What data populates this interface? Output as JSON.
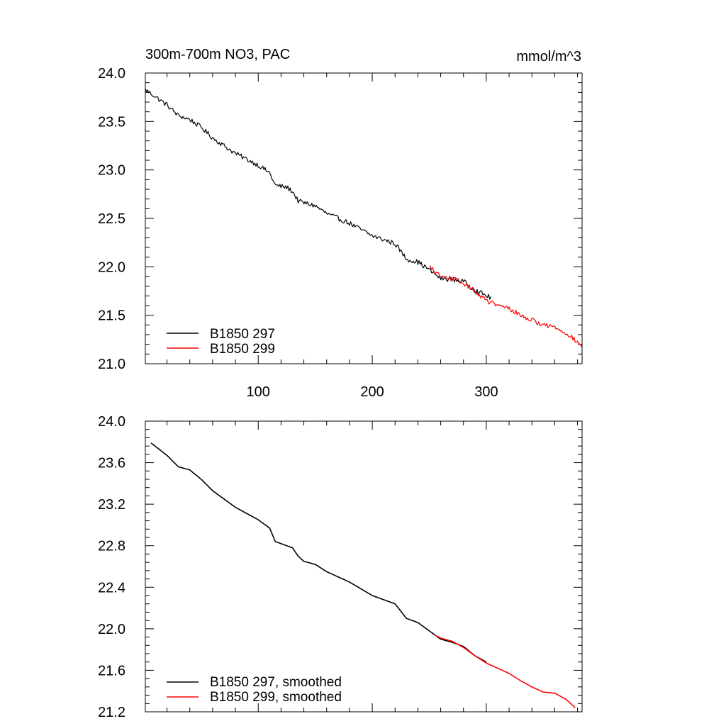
{
  "chart_data": [
    {
      "type": "line",
      "title_left": "300m-700m NO3, PAC",
      "title_right": "mmol/m^3",
      "xlim": [
        1,
        384
      ],
      "ylim": [
        21.0,
        24.0
      ],
      "x_ticks": [
        100,
        200,
        300
      ],
      "x_tick_labels": [
        "100",
        "200",
        "300"
      ],
      "y_ticks": [
        21.0,
        21.5,
        22.0,
        22.5,
        23.0,
        23.5,
        24.0
      ],
      "y_tick_labels": [
        "21.0",
        "21.5",
        "22.0",
        "22.5",
        "23.0",
        "23.5",
        "24.0"
      ],
      "noise": 0.025,
      "series": [
        {
          "name": "B1850 297",
          "color": "#000000",
          "x": [
            1,
            20,
            30,
            40,
            50,
            60,
            80,
            100,
            110,
            115,
            125,
            130,
            135,
            140,
            150,
            160,
            180,
            200,
            220,
            230,
            240,
            250,
            260,
            270,
            280,
            290,
            304
          ],
          "values": [
            23.83,
            23.67,
            23.56,
            23.52,
            23.44,
            23.33,
            23.17,
            23.05,
            22.97,
            22.84,
            22.82,
            22.78,
            22.68,
            22.66,
            22.63,
            22.55,
            22.45,
            22.32,
            22.24,
            22.08,
            22.05,
            21.97,
            21.88,
            21.87,
            21.85,
            21.76,
            21.68
          ]
        },
        {
          "name": "B1850 299",
          "color": "#ff0000",
          "x": [
            250,
            260,
            270,
            280,
            290,
            300,
            310,
            320,
            330,
            340,
            350,
            360,
            370,
            384
          ],
          "values": [
            22.0,
            21.9,
            21.88,
            21.83,
            21.75,
            21.65,
            21.6,
            21.57,
            21.5,
            21.45,
            21.4,
            21.38,
            21.32,
            21.18
          ]
        }
      ],
      "legend_position": "bottom-left"
    },
    {
      "type": "line",
      "xlim": [
        1,
        384
      ],
      "ylim": [
        21.2,
        24.0
      ],
      "x_ticks": [
        100,
        200,
        300
      ],
      "y_ticks": [
        21.2,
        21.6,
        22.0,
        22.4,
        22.8,
        23.2,
        23.6,
        24.0
      ],
      "y_tick_labels": [
        "21.2",
        "21.6",
        "22.0",
        "22.4",
        "22.8",
        "23.2",
        "23.6",
        "24.0"
      ],
      "noise": 0.0,
      "series": [
        {
          "name": "B1850 297, smoothed",
          "color": "#000000",
          "x": [
            6,
            20,
            30,
            40,
            50,
            60,
            80,
            100,
            110,
            115,
            125,
            130,
            135,
            140,
            150,
            160,
            180,
            200,
            220,
            230,
            240,
            250,
            260,
            270,
            280,
            290,
            300
          ],
          "values": [
            23.79,
            23.67,
            23.56,
            23.53,
            23.44,
            23.33,
            23.17,
            23.05,
            22.97,
            22.84,
            22.8,
            22.78,
            22.7,
            22.65,
            22.62,
            22.55,
            22.45,
            22.32,
            22.24,
            22.1,
            22.06,
            21.98,
            21.9,
            21.87,
            21.83,
            21.74,
            21.68
          ]
        },
        {
          "name": "B1850 299, smoothed",
          "color": "#ff0000",
          "x": [
            255,
            260,
            270,
            280,
            290,
            300,
            310,
            320,
            330,
            340,
            350,
            360,
            370,
            378
          ],
          "values": [
            21.94,
            21.91,
            21.88,
            21.82,
            21.74,
            21.67,
            21.62,
            21.57,
            21.5,
            21.44,
            21.39,
            21.38,
            21.32,
            21.24
          ]
        }
      ],
      "legend_position": "bottom-left"
    }
  ]
}
